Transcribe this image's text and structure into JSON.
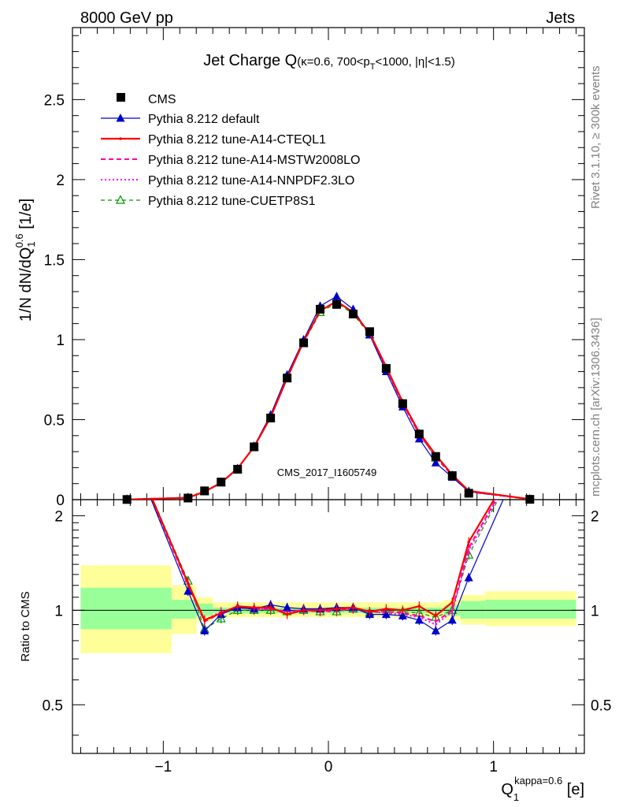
{
  "header": {
    "left": "8000 GeV pp",
    "right": "Jets"
  },
  "side_labels": {
    "rivet": "Rivet 3.1.10, ≥ 300k events",
    "mcplots": "mcplots.cern.ch [arXiv:1306.3436]"
  },
  "watermark": "CMS_2017_I1605749",
  "chart_data": {
    "type": "line",
    "title_main": "Jet Charge Q",
    "title_sub_parts": [
      "(κ=0.6, 700<p",
      "T",
      "<1000, |η|<1.5)"
    ],
    "ylabel_parts": [
      "1/N dN/dQ",
      "1",
      "0.6",
      " [1/e]"
    ],
    "xlabel_parts": [
      "Q",
      "1",
      "kappa=0.6",
      " [e]"
    ],
    "ratio_ylabel": "Ratio to CMS",
    "xlim": [
      -1.55,
      1.55
    ],
    "ylim": [
      0,
      2.95
    ],
    "ratio_ylim": [
      0.35,
      2.25
    ],
    "x_ticks": [
      -1,
      0,
      1
    ],
    "x_tick_labels": [
      "−1",
      "0",
      "1"
    ],
    "y_ticks": [
      0,
      0.5,
      1,
      1.5,
      2,
      2.5
    ],
    "y_tick_labels": [
      "0",
      "0.5",
      "1",
      "1.5",
      "2",
      "2.5"
    ],
    "ratio_y_ticks": [
      0.5,
      1,
      2
    ],
    "ratio_y_tick_labels": [
      "0.5",
      "1",
      "2"
    ],
    "legend_placement": "top-left",
    "x": [
      -1.22,
      -0.85,
      -0.75,
      -0.65,
      -0.55,
      -0.45,
      -0.35,
      -0.25,
      -0.15,
      -0.05,
      0.05,
      0.15,
      0.25,
      0.35,
      0.45,
      0.55,
      0.65,
      0.75,
      0.85,
      1.22
    ],
    "data": {
      "name": "CMS",
      "values": [
        0.001,
        0.01,
        0.055,
        0.11,
        0.19,
        0.33,
        0.51,
        0.76,
        0.98,
        1.19,
        1.22,
        1.16,
        1.05,
        0.82,
        0.6,
        0.41,
        0.27,
        0.15,
        0.04,
        0.002
      ],
      "ratio_band_inner": [
        {
          "x0": -1.5,
          "x1": -0.95,
          "lo": 0.87,
          "hi": 1.18
        },
        {
          "x0": -0.95,
          "x1": -0.8,
          "lo": 0.94,
          "hi": 1.08
        },
        {
          "x0": -0.8,
          "x1": -0.7,
          "lo": 0.96,
          "hi": 1.05
        },
        {
          "x0": -0.7,
          "x1": 0.7,
          "lo": 0.98,
          "hi": 1.02
        },
        {
          "x0": 0.7,
          "x1": 0.8,
          "lo": 0.96,
          "hi": 1.04
        },
        {
          "x0": 0.8,
          "x1": 0.95,
          "lo": 0.94,
          "hi": 1.07
        },
        {
          "x0": 0.95,
          "x1": 1.5,
          "lo": 0.94,
          "hi": 1.08
        }
      ],
      "ratio_band_outer": [
        {
          "x0": -1.5,
          "x1": -0.95,
          "lo": 0.73,
          "hi": 1.39
        },
        {
          "x0": -0.95,
          "x1": -0.8,
          "lo": 0.84,
          "hi": 1.2
        },
        {
          "x0": -0.8,
          "x1": -0.7,
          "lo": 0.92,
          "hi": 1.1
        },
        {
          "x0": -0.7,
          "x1": 0.7,
          "lo": 0.95,
          "hi": 1.06
        },
        {
          "x0": 0.7,
          "x1": 0.8,
          "lo": 0.93,
          "hi": 1.08
        },
        {
          "x0": 0.8,
          "x1": 0.95,
          "lo": 0.9,
          "hi": 1.12
        },
        {
          "x0": 0.95,
          "x1": 1.5,
          "lo": 0.89,
          "hi": 1.15
        }
      ]
    },
    "series": [
      {
        "name": "Pythia 8.212 default",
        "color": "#0000cc",
        "dash": "",
        "marker": "triangle-filled",
        "width": 1.2,
        "values": [
          0.001,
          0.012,
          0.05,
          0.11,
          0.195,
          0.335,
          0.53,
          0.78,
          1.0,
          1.21,
          1.27,
          1.19,
          1.03,
          0.8,
          0.58,
          0.38,
          0.23,
          0.14,
          0.05,
          0.003
        ],
        "ratio": [
          3.5,
          1.15,
          0.86,
          0.97,
          1.02,
          1.01,
          1.04,
          1.02,
          1.01,
          1.01,
          1.02,
          1.02,
          0.97,
          0.97,
          0.96,
          0.93,
          0.86,
          0.93,
          1.27,
          3.5
        ]
      },
      {
        "name": "Pythia 8.212 tune-A14-CTEQL1",
        "color": "#ff0000",
        "dash": "",
        "marker": "dot",
        "width": 2.2,
        "values": [
          0.001,
          0.012,
          0.05,
          0.105,
          0.195,
          0.33,
          0.515,
          0.76,
          0.99,
          1.18,
          1.24,
          1.17,
          1.04,
          0.83,
          0.61,
          0.42,
          0.28,
          0.155,
          0.055,
          0.003
        ],
        "ratio": [
          3.5,
          1.22,
          0.93,
          0.98,
          1.03,
          1.02,
          1.02,
          0.97,
          1.0,
          1.0,
          1.01,
          1.02,
          0.99,
          1.01,
          1.0,
          1.03,
          0.96,
          1.06,
          1.65,
          3.5
        ]
      },
      {
        "name": "Pythia 8.212 tune-A14-MSTW2008LO",
        "color": "#ff00aa",
        "dash": "6,4",
        "marker": "none",
        "width": 2,
        "values": [
          0.001,
          0.012,
          0.05,
          0.105,
          0.195,
          0.33,
          0.515,
          0.76,
          0.99,
          1.18,
          1.24,
          1.17,
          1.04,
          0.82,
          0.6,
          0.41,
          0.27,
          0.15,
          0.05,
          0.003
        ],
        "ratio": [
          3.5,
          1.2,
          0.92,
          0.98,
          1.02,
          1.01,
          1.01,
          0.99,
          1.0,
          0.99,
          1.0,
          1.01,
          0.99,
          0.99,
          0.98,
          0.96,
          0.92,
          1.0,
          1.58,
          3.5
        ]
      },
      {
        "name": "Pythia 8.212 tune-A14-NNPDF2.3LO",
        "color": "#ff00ff",
        "dash": "2,3",
        "marker": "none",
        "width": 2,
        "values": [
          0.001,
          0.012,
          0.05,
          0.105,
          0.195,
          0.33,
          0.515,
          0.76,
          0.99,
          1.18,
          1.24,
          1.17,
          1.04,
          0.82,
          0.6,
          0.41,
          0.27,
          0.15,
          0.05,
          0.003
        ],
        "ratio": [
          3.5,
          1.21,
          0.93,
          0.99,
          1.02,
          1.01,
          1.01,
          0.99,
          1.0,
          0.99,
          1.0,
          1.01,
          0.99,
          0.98,
          0.97,
          0.95,
          0.9,
          0.99,
          1.55,
          3.5
        ]
      },
      {
        "name": "Pythia 8.212 tune-CUETP8S1",
        "color": "#009900",
        "dash": "5,4",
        "marker": "triangle-open",
        "width": 1.2,
        "values": [
          0.001,
          0.012,
          0.05,
          0.105,
          0.19,
          0.33,
          0.51,
          0.76,
          0.98,
          1.17,
          1.23,
          1.16,
          1.03,
          0.82,
          0.6,
          0.41,
          0.26,
          0.15,
          0.05,
          0.003
        ],
        "ratio": [
          3.5,
          1.24,
          0.87,
          0.94,
          1.0,
          1.0,
          1.0,
          0.99,
          1.0,
          0.99,
          0.99,
          1.01,
          0.98,
          0.99,
          0.99,
          0.98,
          0.95,
          1.0,
          1.5,
          3.5
        ]
      }
    ]
  }
}
